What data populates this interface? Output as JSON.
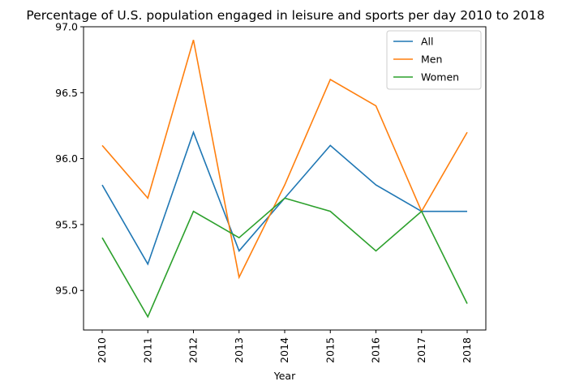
{
  "chart_data": {
    "type": "line",
    "title": "Percentage of U.S. population engaged in leisure and sports per day 2010 to 2018",
    "xlabel": "Year",
    "ylabel": "",
    "x": [
      "2010",
      "2011",
      "2012",
      "2013",
      "2014",
      "2015",
      "2016",
      "2017",
      "2018"
    ],
    "ylim": [
      94.7,
      97.0
    ],
    "yticks": [
      "95.0",
      "95.5",
      "96.0",
      "96.5",
      "97.0"
    ],
    "grid": false,
    "legend_position": "top-right",
    "series": [
      {
        "name": "All",
        "color": "#1f77b4",
        "values": [
          95.8,
          95.2,
          96.2,
          95.3,
          95.7,
          96.1,
          95.8,
          95.6,
          95.6
        ]
      },
      {
        "name": "Men",
        "color": "#ff7f0e",
        "values": [
          96.1,
          95.7,
          96.9,
          95.1,
          95.8,
          96.6,
          96.4,
          95.6,
          96.2
        ]
      },
      {
        "name": "Women",
        "color": "#2ca02c",
        "values": [
          95.4,
          94.8,
          95.6,
          95.4,
          95.7,
          95.6,
          95.3,
          95.6,
          94.9
        ]
      }
    ]
  }
}
